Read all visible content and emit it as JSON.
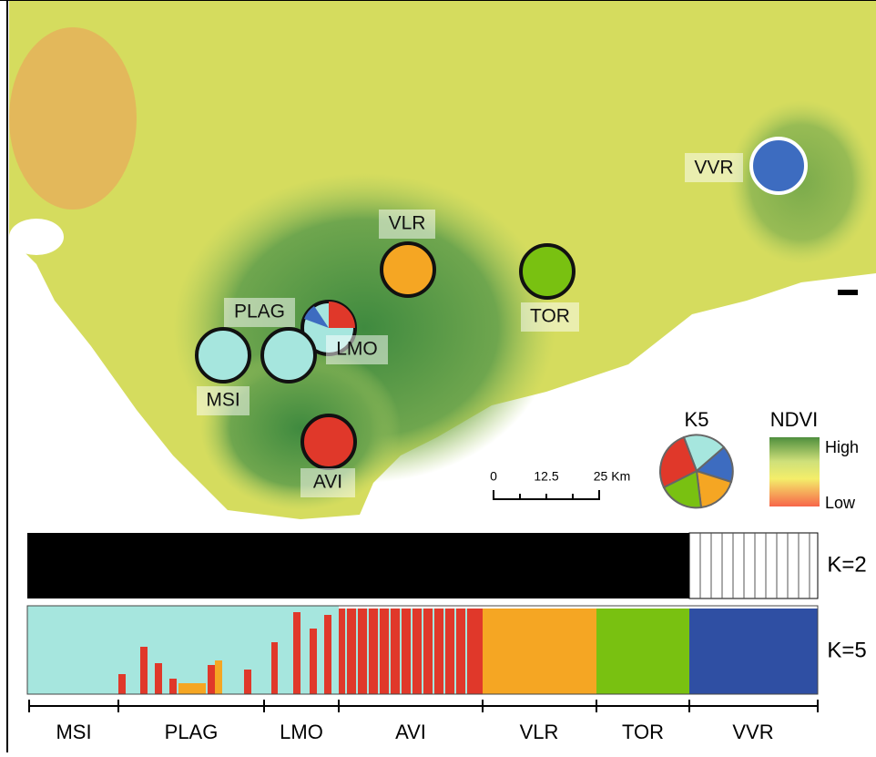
{
  "map": {
    "sites": [
      {
        "label": "VVR"
      },
      {
        "label": "VLR"
      },
      {
        "label": "TOR"
      },
      {
        "label": "PLAG"
      },
      {
        "label": "LMO"
      },
      {
        "label": "MSI"
      },
      {
        "label": "AVI"
      }
    ]
  },
  "scale_bar": {
    "labels": [
      "0",
      "12.5",
      "25 Km"
    ]
  },
  "legend": {
    "pie_title": "K5",
    "ndvi_title": "NDVI",
    "high": "High",
    "low": "Low"
  },
  "structure": {
    "rows": [
      "K=2",
      "K=5"
    ],
    "populations": [
      "MSI",
      "PLAG",
      "LMO",
      "AVI",
      "VLR",
      "TOR",
      "VVR"
    ]
  }
}
